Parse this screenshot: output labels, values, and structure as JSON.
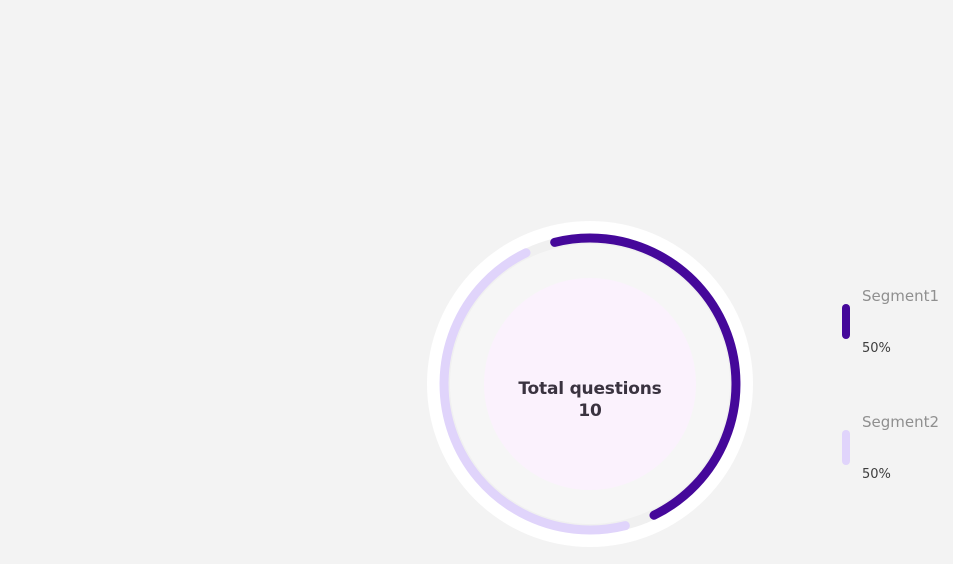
{
  "chart_data": {
    "type": "pie",
    "style": "donut",
    "center_label": "Total questions",
    "center_value": "10",
    "series": [
      {
        "name": "Segment1",
        "value": 50,
        "label": "50%",
        "color": "#45089a"
      },
      {
        "name": "Segment2",
        "value": 50,
        "label": "50%",
        "color": "#e0d4fb"
      }
    ],
    "legend": "right"
  },
  "colors": {
    "background": "#f3f3f3",
    "outer_ring": "#ffffff",
    "track": "#f0f0f0",
    "inner_disc": "#fbf2fd",
    "center_text": "#3a3340"
  }
}
